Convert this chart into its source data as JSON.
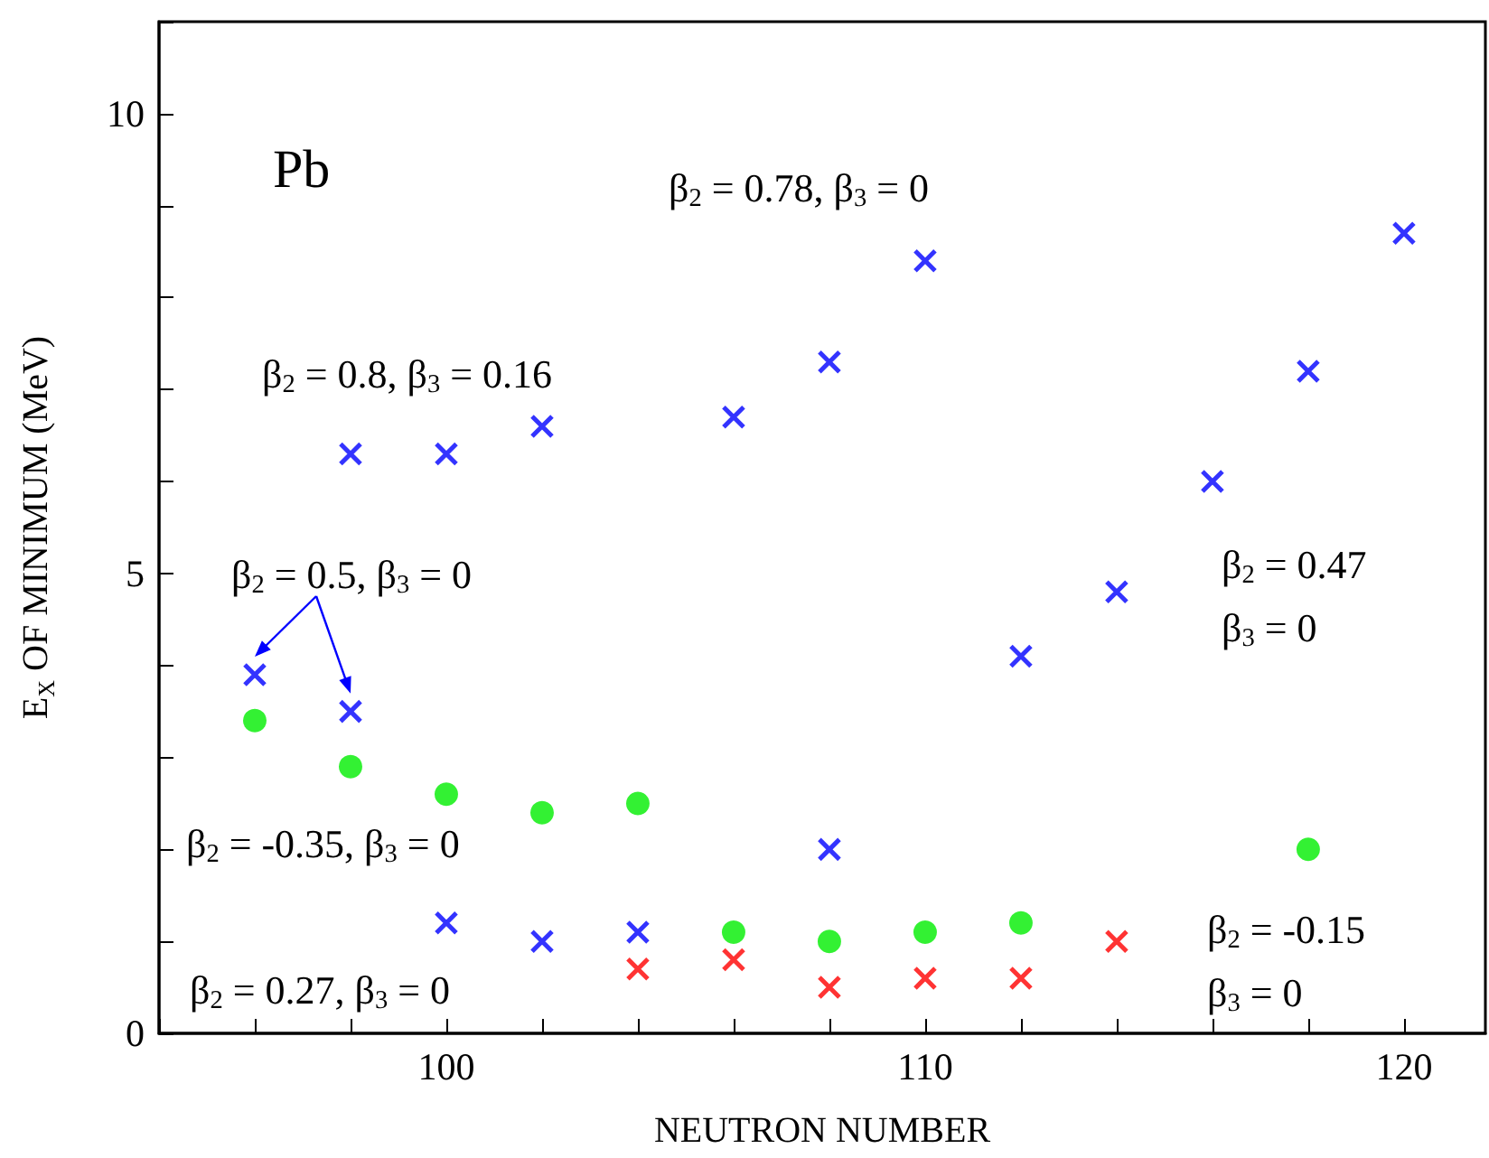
{
  "chart_data": {
    "type": "scatter",
    "title": "Pb",
    "xlabel": "NEUTRON NUMBER",
    "ylabel": "E$_{X}$ OF MINIMUM (MeV)",
    "xlim": [
      94,
      121.7
    ],
    "xticks": [
      {
        "value": 94,
        "label": null
      },
      {
        "value": 96,
        "label": null
      },
      {
        "value": 98,
        "label": null
      },
      100,
      {
        "value": 102,
        "label": null
      },
      {
        "value": 104,
        "label": null
      },
      {
        "value": 106,
        "label": null
      },
      {
        "value": 108,
        "label": null
      },
      110,
      {
        "value": 112,
        "label": null
      },
      {
        "value": 114,
        "label": null
      },
      {
        "value": 116,
        "label": null
      },
      {
        "value": 118,
        "label": null
      },
      120
    ],
    "ylim": [
      0,
      11
    ],
    "yticks": [
      0,
      {
        "value": 1,
        "label": null
      },
      {
        "value": 2,
        "label": null
      },
      {
        "value": 3,
        "label": null
      },
      {
        "value": 4,
        "label": null
      },
      5,
      {
        "value": 6,
        "label": null
      },
      {
        "value": 7,
        "label": null
      },
      {
        "value": 8,
        "label": null
      },
      {
        "value": 9,
        "label": null
      },
      10,
      {
        "value": 11,
        "label": null
      }
    ],
    "grid": false,
    "series": [
      {
        "color": "#0000ff",
        "marker": "cross",
        "x": [
          96,
          98,
          98,
          100,
          100,
          102,
          102,
          104,
          106,
          108,
          108,
          110,
          112,
          114,
          116,
          118,
          120
        ],
        "values": [
          3.9,
          6.3,
          3.5,
          6.3,
          1.2,
          6.6,
          1.0,
          1.1,
          6.7,
          7.3,
          2.0,
          8.4,
          4.1,
          4.8,
          6.0,
          7.2,
          8.7
        ]
      },
      {
        "color": "#00ee00",
        "marker": "circle",
        "x": [
          96,
          98,
          100,
          102,
          104,
          106,
          108,
          110,
          112,
          118
        ],
        "values": [
          3.4,
          2.9,
          2.6,
          2.4,
          2.5,
          1.1,
          1.0,
          1.1,
          1.2,
          2.0
        ]
      },
      {
        "color": "#ff0000",
        "marker": "cross",
        "x": [
          104,
          106,
          108,
          110,
          112,
          114
        ],
        "values": [
          0.7,
          0.8,
          0.5,
          0.6,
          0.6,
          1.0
        ]
      }
    ],
    "annotations": [
      "β$_{2}$ = 0.78, β$_{3}$ = 0",
      "β$_{2}$ = 0.8, β$_{3}$ = 0.16",
      "β$_{2}$ = 0.5, β$_{3}$ = 0",
      "β$_{2}$ = 0.47\nβ$_{3}$ = 0",
      "β$_{2}$ = -0.35, β$_{3}$ = 0",
      "β$_{2}$ = -0.15\nβ$_{3}$ = 0",
      "β$_{2}$ = 0.27, β$_{3}$ = 0"
    ]
  }
}
